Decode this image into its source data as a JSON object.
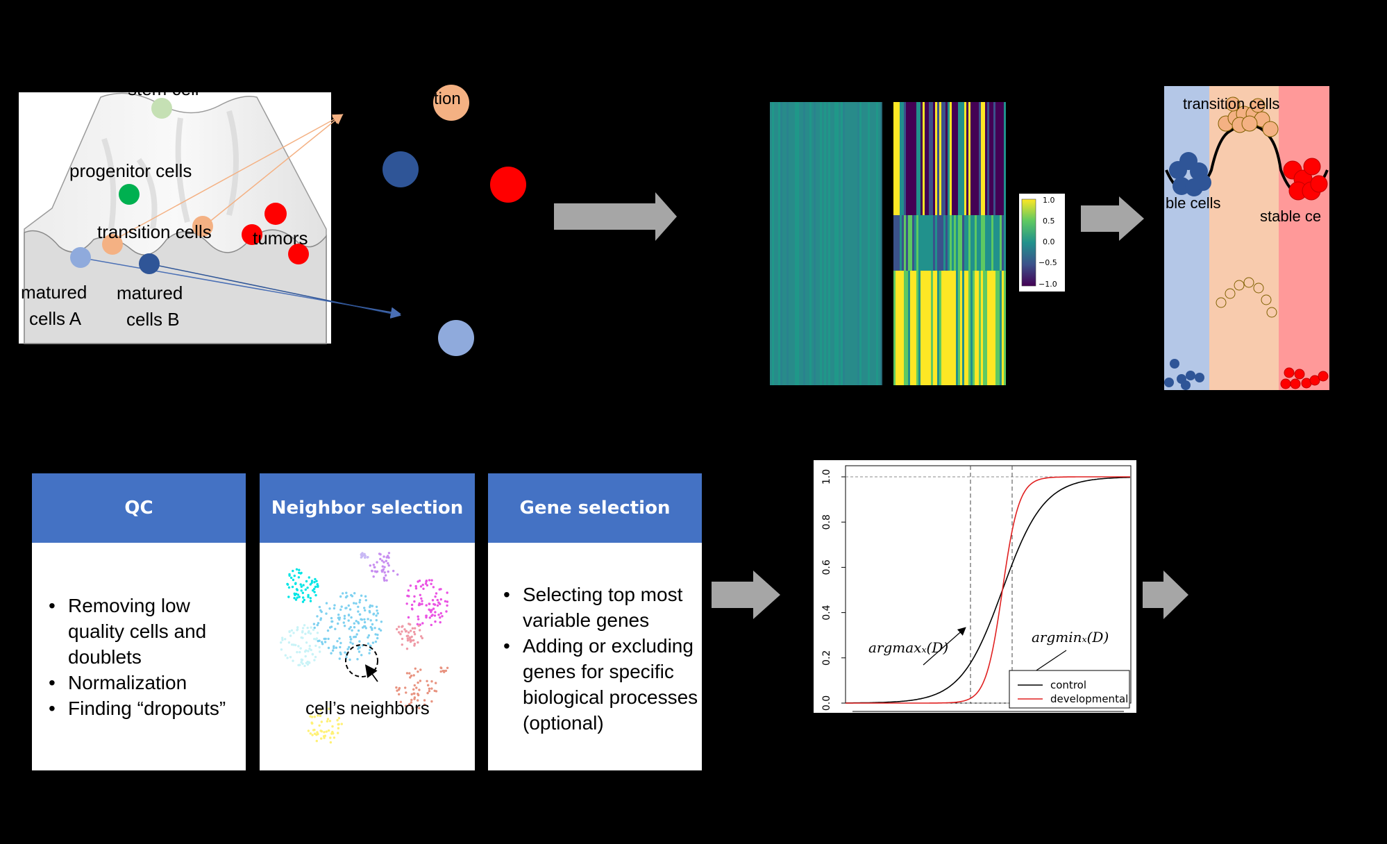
{
  "landscape": {
    "labels": {
      "stem": "stem cell",
      "progenitor": "progenitor cells",
      "transition": "transition cells",
      "tumors": "tumors",
      "matured_a_1": "matured",
      "matured_a_2": "cells A",
      "matured_b_1": "matured",
      "matured_b_2": "cells B"
    },
    "partial_label_right": "tion"
  },
  "heatmap": {
    "colorbar_ticks": [
      "1.0",
      "0.5",
      "0.0",
      "−0.5",
      "−1.0"
    ]
  },
  "states": {
    "transition_label": "transition cells",
    "stable_left": "ble cells",
    "stable_right": "stable ce"
  },
  "boxes": {
    "qc": {
      "title": "QC",
      "items": [
        "Removing low quality cells and doublets",
        "Normalization",
        "Finding “dropouts”"
      ]
    },
    "neighbor": {
      "title": "Neighbor selection",
      "caption": "cell’s neighbors"
    },
    "gene": {
      "title": "Gene selection",
      "items": [
        "Selecting top most variable genes",
        "Adding or excluding genes for specific biological processes (optional)"
      ]
    }
  },
  "chart_data": {
    "type": "line",
    "title": "",
    "xlabel": "",
    "ylabel": "",
    "ylim": [
      0,
      1.0
    ],
    "yticks": [
      "0.0",
      "0.2",
      "0.4",
      "0.6",
      "0.8",
      "1.0"
    ],
    "series": [
      {
        "name": "control",
        "color": "#000000",
        "shape": "cumulative",
        "midpoint_x_frac": 0.55,
        "spread": "wide"
      },
      {
        "name": "developmental",
        "color": "#e02020",
        "shape": "cumulative",
        "midpoint_x_frac": 0.55,
        "spread": "narrow"
      }
    ],
    "legend": "bottom-right",
    "annotations": [
      "argmaxₓ(D)",
      "argminₓ(D)"
    ]
  },
  "colors": {
    "background": "#000000",
    "header_blue": "#4472c4",
    "arrow_gray": "#a6a6a6",
    "dark_blue": "#2f5597",
    "light_blue": "#8faadc",
    "red": "#ff0000",
    "peach": "#f4b183",
    "green": "#00b050",
    "light_green": "#c5e0b4"
  }
}
